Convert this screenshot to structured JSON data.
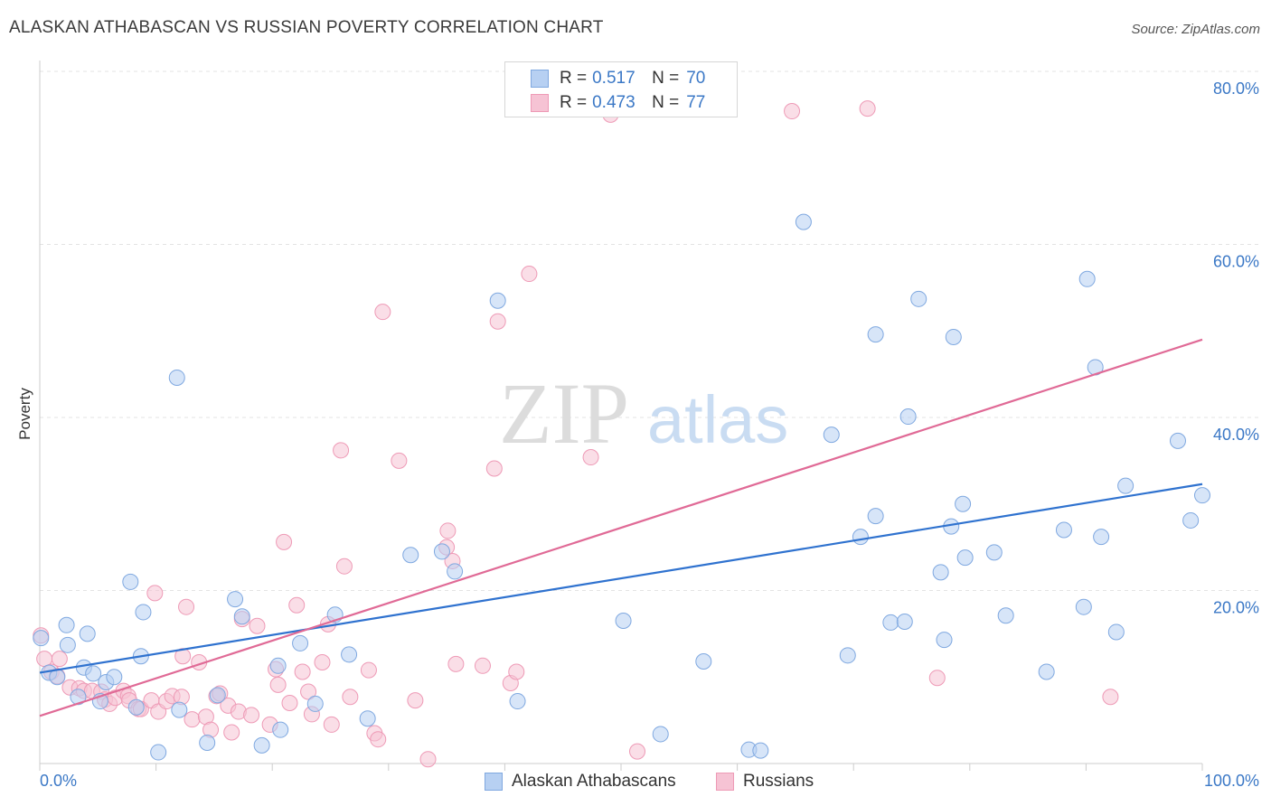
{
  "title": "ALASKAN ATHABASCAN VS RUSSIAN POVERTY CORRELATION CHART",
  "source": "Source: ZipAtlas.com",
  "watermark": {
    "zip": "ZIP",
    "atlas": "atlas"
  },
  "colors": {
    "blue": "#3b78c6",
    "blue_fill": "#b7d0f2",
    "blue_stroke": "#7fa8e0",
    "blue_line": "#2f72cf",
    "pink": "#e46d99",
    "pink_fill": "#f6c3d4",
    "pink_stroke": "#ee9ab6",
    "pink_line": "#e06a96",
    "grid": "#e3e3e3",
    "tick_label": "#3b78c6"
  },
  "legend": {
    "r_label": "R =",
    "n_label": "N =",
    "series": [
      {
        "name": "Alaskan Athabascans",
        "r": "0.517",
        "n": "70"
      },
      {
        "name": "Russians",
        "r": "0.473",
        "n": "77"
      }
    ]
  },
  "chart_data": {
    "type": "scatter",
    "xlabel": "",
    "ylabel": "Poverty",
    "xlim": [
      0,
      100
    ],
    "ylim": [
      0,
      80
    ],
    "x_tick_labels": [
      "0.0%",
      "100.0%"
    ],
    "y_ticks": [
      20,
      40,
      60,
      80
    ],
    "y_tick_labels": [
      "20.0%",
      "40.0%",
      "60.0%",
      "80.0%"
    ],
    "grid": true,
    "legend_position": "top-center",
    "series": [
      {
        "name": "Alaskan Athabascans",
        "r": 0.517,
        "n": 70,
        "trend": {
          "x": [
            0,
            100
          ],
          "y": [
            10.5,
            32.3
          ]
        },
        "points": [
          [
            0.1,
            14.5
          ],
          [
            0.8,
            10.5
          ],
          [
            1.5,
            10.0
          ],
          [
            2.3,
            16.0
          ],
          [
            2.4,
            13.7
          ],
          [
            3.3,
            7.7
          ],
          [
            3.8,
            11.1
          ],
          [
            4.1,
            15.0
          ],
          [
            4.6,
            10.4
          ],
          [
            5.2,
            7.2
          ],
          [
            5.7,
            9.4
          ],
          [
            6.4,
            10.0
          ],
          [
            7.8,
            21.0
          ],
          [
            8.3,
            6.5
          ],
          [
            8.9,
            17.5
          ],
          [
            8.7,
            12.4
          ],
          [
            10.2,
            1.3
          ],
          [
            11.8,
            44.6
          ],
          [
            12.0,
            6.2
          ],
          [
            14.4,
            2.4
          ],
          [
            15.3,
            7.9
          ],
          [
            16.8,
            19.0
          ],
          [
            17.4,
            17.0
          ],
          [
            19.1,
            2.1
          ],
          [
            20.5,
            11.3
          ],
          [
            20.7,
            3.9
          ],
          [
            22.4,
            13.9
          ],
          [
            23.7,
            6.9
          ],
          [
            25.4,
            17.2
          ],
          [
            26.6,
            12.6
          ],
          [
            28.2,
            5.2
          ],
          [
            31.9,
            24.1
          ],
          [
            34.6,
            24.5
          ],
          [
            35.7,
            22.2
          ],
          [
            39.4,
            53.5
          ],
          [
            41.1,
            7.2
          ],
          [
            50.2,
            16.5
          ],
          [
            53.4,
            3.4
          ],
          [
            57.1,
            11.8
          ],
          [
            61.0,
            1.6
          ],
          [
            62.0,
            1.5
          ],
          [
            65.7,
            62.6
          ],
          [
            68.1,
            38.0
          ],
          [
            69.5,
            12.5
          ],
          [
            70.6,
            26.2
          ],
          [
            71.9,
            28.6
          ],
          [
            71.9,
            49.6
          ],
          [
            73.2,
            16.3
          ],
          [
            74.4,
            16.4
          ],
          [
            74.7,
            40.1
          ],
          [
            75.6,
            53.7
          ],
          [
            77.5,
            22.1
          ],
          [
            77.8,
            14.3
          ],
          [
            78.4,
            27.4
          ],
          [
            78.6,
            49.3
          ],
          [
            79.4,
            30.0
          ],
          [
            79.6,
            23.8
          ],
          [
            82.1,
            24.4
          ],
          [
            83.1,
            17.1
          ],
          [
            86.6,
            10.6
          ],
          [
            88.1,
            27.0
          ],
          [
            89.8,
            18.1
          ],
          [
            90.1,
            56.0
          ],
          [
            90.8,
            45.8
          ],
          [
            91.3,
            26.2
          ],
          [
            92.6,
            15.2
          ],
          [
            93.4,
            32.1
          ],
          [
            97.9,
            37.3
          ],
          [
            99.0,
            28.1
          ],
          [
            100.0,
            31.0
          ]
        ]
      },
      {
        "name": "Russians",
        "r": 0.473,
        "n": 77,
        "trend": {
          "x": [
            0,
            100
          ],
          "y": [
            5.5,
            49.0
          ]
        },
        "points": [
          [
            0.1,
            14.8
          ],
          [
            0.4,
            12.1
          ],
          [
            1.0,
            10.6
          ],
          [
            1.5,
            10.1
          ],
          [
            1.7,
            12.1
          ],
          [
            2.6,
            8.8
          ],
          [
            3.4,
            8.7
          ],
          [
            3.8,
            8.4
          ],
          [
            4.5,
            8.4
          ],
          [
            5.3,
            8.3
          ],
          [
            5.6,
            7.4
          ],
          [
            6.0,
            6.9
          ],
          [
            6.5,
            7.6
          ],
          [
            7.2,
            8.4
          ],
          [
            7.6,
            7.8
          ],
          [
            7.7,
            7.3
          ],
          [
            8.5,
            6.3
          ],
          [
            8.7,
            6.3
          ],
          [
            9.6,
            7.3
          ],
          [
            9.9,
            19.7
          ],
          [
            10.2,
            6.0
          ],
          [
            10.9,
            7.2
          ],
          [
            11.4,
            7.8
          ],
          [
            12.2,
            7.7
          ],
          [
            12.3,
            12.4
          ],
          [
            12.6,
            18.1
          ],
          [
            13.1,
            5.1
          ],
          [
            13.7,
            11.7
          ],
          [
            14.3,
            5.4
          ],
          [
            14.7,
            3.9
          ],
          [
            15.2,
            7.8
          ],
          [
            15.5,
            8.1
          ],
          [
            16.2,
            6.7
          ],
          [
            16.5,
            3.6
          ],
          [
            17.1,
            6.0
          ],
          [
            17.4,
            16.7
          ],
          [
            18.2,
            5.6
          ],
          [
            18.7,
            15.9
          ],
          [
            19.8,
            4.5
          ],
          [
            20.3,
            10.9
          ],
          [
            20.5,
            9.1
          ],
          [
            21.0,
            25.6
          ],
          [
            21.5,
            7.0
          ],
          [
            22.1,
            18.3
          ],
          [
            22.6,
            10.6
          ],
          [
            23.1,
            8.3
          ],
          [
            23.4,
            5.7
          ],
          [
            24.3,
            11.7
          ],
          [
            24.8,
            16.1
          ],
          [
            25.1,
            4.5
          ],
          [
            25.9,
            36.2
          ],
          [
            26.2,
            22.8
          ],
          [
            26.7,
            7.7
          ],
          [
            28.3,
            10.8
          ],
          [
            28.8,
            3.5
          ],
          [
            29.1,
            2.8
          ],
          [
            29.5,
            52.2
          ],
          [
            30.9,
            35.0
          ],
          [
            32.3,
            7.3
          ],
          [
            33.4,
            0.5
          ],
          [
            35.0,
            25.0
          ],
          [
            35.1,
            26.9
          ],
          [
            35.5,
            23.4
          ],
          [
            35.8,
            11.5
          ],
          [
            38.1,
            11.3
          ],
          [
            39.1,
            34.1
          ],
          [
            39.4,
            51.1
          ],
          [
            40.5,
            9.3
          ],
          [
            41.0,
            10.6
          ],
          [
            42.1,
            56.6
          ],
          [
            47.4,
            35.4
          ],
          [
            49.1,
            75.0
          ],
          [
            51.4,
            1.4
          ],
          [
            64.7,
            75.4
          ],
          [
            71.2,
            75.7
          ],
          [
            77.2,
            9.9
          ],
          [
            92.1,
            7.7
          ]
        ]
      }
    ]
  }
}
